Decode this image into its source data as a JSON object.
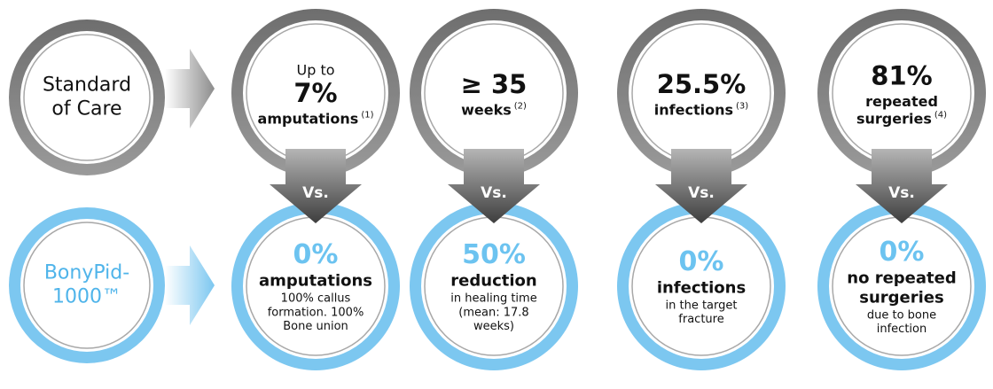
{
  "standard_of_care": {
    "lines": [
      "Standard",
      "of Care"
    ]
  },
  "bonypid": {
    "lines": [
      "BonyPid-",
      "1000™"
    ]
  },
  "comparisons": [
    {
      "soc": {
        "prefix": "Up to",
        "value": "7%",
        "label": [
          "amputations"
        ],
        "ref": "(1)"
      },
      "vs": "Vs.",
      "bonypid": {
        "value": "0%",
        "label": [
          "amputations"
        ],
        "detail": [
          "100% callus",
          "formation. 100%",
          "Bone union"
        ]
      }
    },
    {
      "soc": {
        "value": "≥ 35",
        "label": [
          "weeks"
        ],
        "ref": "(2)"
      },
      "vs": "Vs.",
      "bonypid": {
        "value": "50%",
        "label": [
          "reduction"
        ],
        "detail": [
          "in healing time",
          "(mean: 17.8",
          "weeks)"
        ]
      }
    },
    {
      "soc": {
        "value": "25.5%",
        "label": [
          "infections"
        ],
        "ref": "(3)"
      },
      "vs": "Vs.",
      "bonypid": {
        "value": "0%",
        "label": [
          "infections"
        ],
        "detail": [
          "in the target",
          "fracture"
        ]
      }
    },
    {
      "soc": {
        "value": "81%",
        "label": [
          "repeated",
          "surgeries"
        ],
        "ref": "(4)"
      },
      "vs": "Vs.",
      "bonypid": {
        "value": "0%",
        "label": [
          "no repeated",
          "surgeries"
        ],
        "detail": [
          "due to bone",
          "infection"
        ]
      }
    }
  ]
}
